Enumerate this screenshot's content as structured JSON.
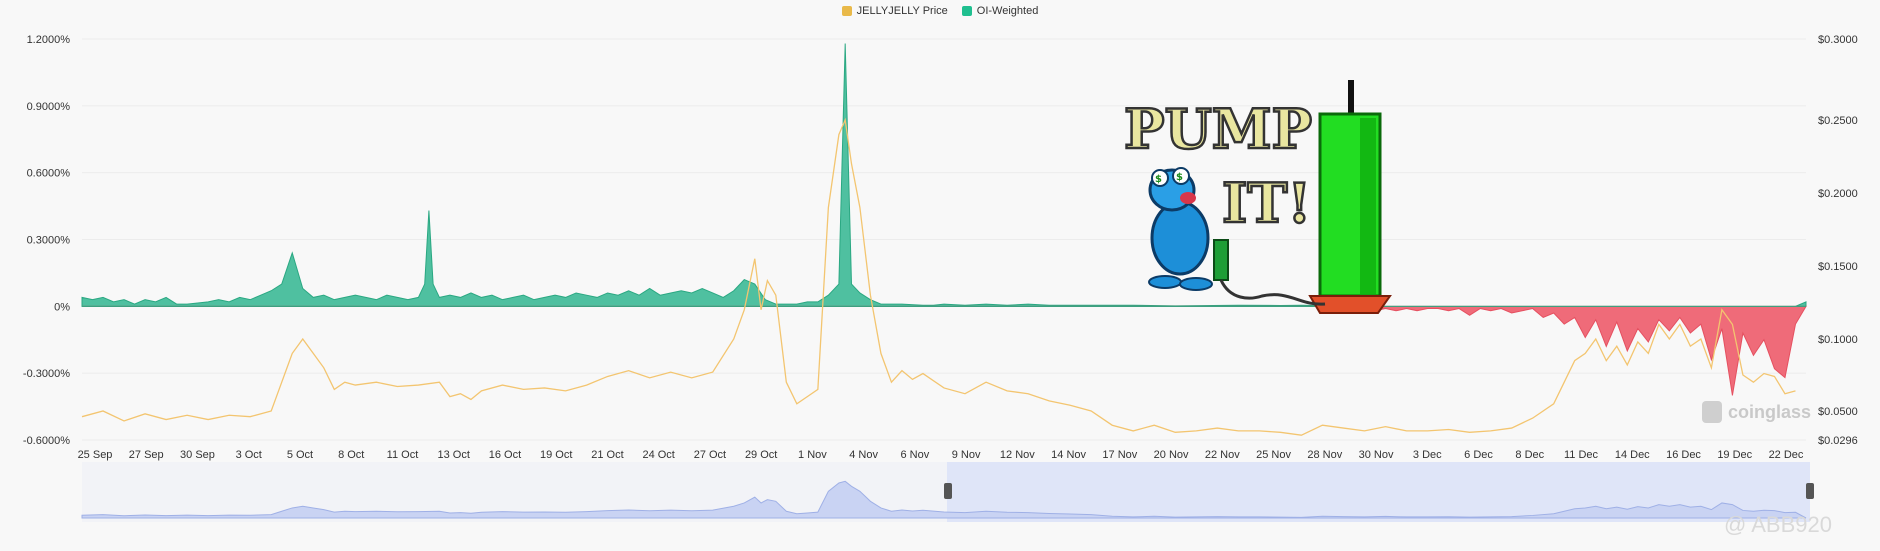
{
  "legend": {
    "price_label": "JELLYJELLY Price",
    "oi_label": "OI-Weighted",
    "price_color": "#e9b949",
    "oi_color": "#1fbf8f"
  },
  "colors": {
    "funding_positive": "#4fc0a0",
    "funding_negative": "#ef6b79",
    "price_line": "#f3c570",
    "navigator": "#c9d3f3"
  },
  "watermarks": {
    "coinglass": "coinglass",
    "author": "@ ABB920"
  },
  "sticker": {
    "line1": "PUMP",
    "line2": "IT!"
  },
  "chart_data": {
    "type": "area",
    "left_axis": {
      "ticks": [
        "1.2000%",
        "0.9000%",
        "0.6000%",
        "0.3000%",
        "0%",
        "-0.3000%",
        "-0.6000%"
      ],
      "values": [
        1.2,
        0.9,
        0.6,
        0.3,
        0,
        -0.3,
        -0.6
      ],
      "ylim": [
        -0.6,
        1.2
      ]
    },
    "right_axis": {
      "ticks": [
        "$0.3000",
        "$0.2500",
        "$0.2000",
        "$0.1500",
        "$0.1000",
        "$0.0500",
        "$0.0296"
      ],
      "values": [
        0.3,
        0.25,
        0.2,
        0.15,
        0.1,
        0.05,
        0.0296
      ],
      "ylim": [
        0.0296,
        0.3
      ]
    },
    "x_ticks": [
      "25 Sep",
      "27 Sep",
      "30 Sep",
      "3 Oct",
      "5 Oct",
      "8 Oct",
      "11 Oct",
      "13 Oct",
      "16 Oct",
      "19 Oct",
      "21 Oct",
      "24 Oct",
      "27 Oct",
      "29 Oct",
      "1 Nov",
      "4 Nov",
      "6 Nov",
      "9 Nov",
      "12 Nov",
      "14 Nov",
      "17 Nov",
      "20 Nov",
      "22 Nov",
      "25 Nov",
      "28 Nov",
      "30 Nov",
      "3 Dec",
      "6 Dec",
      "8 Dec",
      "11 Dec",
      "14 Dec",
      "16 Dec",
      "19 Dec",
      "22 Dec"
    ],
    "series": [
      {
        "name": "OI-Weighted",
        "axis": "left",
        "points": [
          [
            0,
            0.04
          ],
          [
            0.5,
            0.03
          ],
          [
            1,
            0.04
          ],
          [
            1.5,
            0.02
          ],
          [
            2,
            0.03
          ],
          [
            2.5,
            0.01
          ],
          [
            3,
            0.03
          ],
          [
            3.5,
            0.02
          ],
          [
            4,
            0.04
          ],
          [
            4.5,
            0.01
          ],
          [
            5,
            0.01
          ],
          [
            6,
            0.02
          ],
          [
            6.5,
            0.03
          ],
          [
            7,
            0.02
          ],
          [
            7.5,
            0.04
          ],
          [
            8,
            0.03
          ],
          [
            8.5,
            0.05
          ],
          [
            9,
            0.07
          ],
          [
            9.5,
            0.1
          ],
          [
            10,
            0.24
          ],
          [
            10.5,
            0.08
          ],
          [
            11,
            0.04
          ],
          [
            11.5,
            0.05
          ],
          [
            12,
            0.03
          ],
          [
            12.5,
            0.04
          ],
          [
            13,
            0.05
          ],
          [
            13.5,
            0.04
          ],
          [
            14,
            0.03
          ],
          [
            14.5,
            0.05
          ],
          [
            15,
            0.04
          ],
          [
            15.5,
            0.03
          ],
          [
            16,
            0.04
          ],
          [
            16.3,
            0.1
          ],
          [
            16.5,
            0.43
          ],
          [
            16.7,
            0.1
          ],
          [
            17,
            0.04
          ],
          [
            17.5,
            0.05
          ],
          [
            18,
            0.04
          ],
          [
            18.5,
            0.06
          ],
          [
            19,
            0.04
          ],
          [
            19.5,
            0.05
          ],
          [
            20,
            0.03
          ],
          [
            20.5,
            0.04
          ],
          [
            21,
            0.05
          ],
          [
            21.5,
            0.03
          ],
          [
            22,
            0.04
          ],
          [
            22.5,
            0.05
          ],
          [
            23,
            0.04
          ],
          [
            23.5,
            0.06
          ],
          [
            24,
            0.05
          ],
          [
            24.5,
            0.04
          ],
          [
            25,
            0.06
          ],
          [
            25.5,
            0.05
          ],
          [
            26,
            0.07
          ],
          [
            26.5,
            0.05
          ],
          [
            27,
            0.08
          ],
          [
            27.5,
            0.05
          ],
          [
            28,
            0.06
          ],
          [
            28.5,
            0.07
          ],
          [
            29,
            0.06
          ],
          [
            29.5,
            0.08
          ],
          [
            30,
            0.06
          ],
          [
            30.5,
            0.04
          ],
          [
            31,
            0.07
          ],
          [
            31.5,
            0.12
          ],
          [
            32,
            0.1
          ],
          [
            32.5,
            0.03
          ],
          [
            33,
            0.01
          ],
          [
            33.5,
            0.01
          ],
          [
            34,
            0.01
          ],
          [
            34.5,
            0.02
          ],
          [
            35,
            0.02
          ],
          [
            35.5,
            0.05
          ],
          [
            36,
            0.1
          ],
          [
            36.3,
            1.18
          ],
          [
            36.6,
            0.1
          ],
          [
            37,
            0.06
          ],
          [
            37.5,
            0.03
          ],
          [
            38,
            0.01
          ],
          [
            39,
            0.01
          ],
          [
            40,
            0.005
          ],
          [
            40.5,
            0.005
          ],
          [
            41,
            0.01
          ],
          [
            42,
            0.005
          ],
          [
            43,
            0.01
          ],
          [
            44,
            0.005
          ],
          [
            45,
            0.01
          ],
          [
            46,
            0.005
          ],
          [
            50,
            0.005
          ],
          [
            52,
            0.002
          ],
          [
            55,
            0.005
          ],
          [
            57,
            0.004
          ],
          [
            58,
            0.005
          ],
          [
            59,
            0.003
          ],
          [
            60,
            0.004
          ],
          [
            61,
            -0.01
          ],
          [
            61.5,
            -0.02
          ],
          [
            62,
            -0.01
          ],
          [
            62.5,
            -0.02
          ],
          [
            63,
            -0.01
          ],
          [
            63.5,
            -0.02
          ],
          [
            64,
            -0.01
          ],
          [
            64.5,
            -0.01
          ],
          [
            65,
            -0.02
          ],
          [
            65.5,
            -0.01
          ],
          [
            66,
            -0.04
          ],
          [
            66.5,
            -0.01
          ],
          [
            67,
            -0.02
          ],
          [
            67.5,
            -0.01
          ],
          [
            68,
            -0.03
          ],
          [
            68.5,
            -0.02
          ],
          [
            69,
            -0.01
          ],
          [
            69.5,
            -0.05
          ],
          [
            70,
            -0.03
          ],
          [
            70.5,
            -0.08
          ],
          [
            71,
            -0.05
          ],
          [
            71.5,
            -0.14
          ],
          [
            72,
            -0.06
          ],
          [
            72.5,
            -0.18
          ],
          [
            73,
            -0.07
          ],
          [
            73.5,
            -0.2
          ],
          [
            74,
            -0.1
          ],
          [
            74.5,
            -0.16
          ],
          [
            75,
            -0.06
          ],
          [
            75.5,
            -0.11
          ],
          [
            76,
            -0.05
          ],
          [
            76.5,
            -0.12
          ],
          [
            77,
            -0.08
          ],
          [
            77.5,
            -0.24
          ],
          [
            78,
            -0.1
          ],
          [
            78.5,
            -0.4
          ],
          [
            79,
            -0.12
          ],
          [
            79.5,
            -0.22
          ],
          [
            80,
            -0.15
          ],
          [
            80.5,
            -0.28
          ],
          [
            81,
            -0.32
          ],
          [
            81.5,
            -0.08
          ],
          [
            82,
            0.02
          ]
        ]
      },
      {
        "name": "JELLYJELLY Price",
        "axis": "right",
        "points": [
          [
            0,
            0.046
          ],
          [
            1,
            0.05
          ],
          [
            2,
            0.043
          ],
          [
            3,
            0.048
          ],
          [
            4,
            0.044
          ],
          [
            5,
            0.047
          ],
          [
            6,
            0.044
          ],
          [
            7,
            0.047
          ],
          [
            8,
            0.046
          ],
          [
            9,
            0.05
          ],
          [
            9.5,
            0.07
          ],
          [
            10,
            0.09
          ],
          [
            10.5,
            0.1
          ],
          [
            11,
            0.09
          ],
          [
            11.5,
            0.08
          ],
          [
            12,
            0.065
          ],
          [
            12.5,
            0.07
          ],
          [
            13,
            0.068
          ],
          [
            14,
            0.07
          ],
          [
            15,
            0.067
          ],
          [
            16,
            0.068
          ],
          [
            17,
            0.07
          ],
          [
            17.5,
            0.06
          ],
          [
            18,
            0.062
          ],
          [
            18.5,
            0.058
          ],
          [
            19,
            0.064
          ],
          [
            20,
            0.068
          ],
          [
            21,
            0.065
          ],
          [
            22,
            0.066
          ],
          [
            23,
            0.064
          ],
          [
            24,
            0.068
          ],
          [
            25,
            0.074
          ],
          [
            26,
            0.078
          ],
          [
            27,
            0.073
          ],
          [
            28,
            0.077
          ],
          [
            29,
            0.073
          ],
          [
            30,
            0.077
          ],
          [
            31,
            0.1
          ],
          [
            31.5,
            0.12
          ],
          [
            32,
            0.155
          ],
          [
            32.3,
            0.12
          ],
          [
            32.6,
            0.14
          ],
          [
            33,
            0.13
          ],
          [
            33.5,
            0.07
          ],
          [
            34,
            0.055
          ],
          [
            34.5,
            0.06
          ],
          [
            35,
            0.065
          ],
          [
            35.5,
            0.19
          ],
          [
            36,
            0.24
          ],
          [
            36.3,
            0.25
          ],
          [
            36.6,
            0.22
          ],
          [
            37,
            0.19
          ],
          [
            37.5,
            0.13
          ],
          [
            38,
            0.09
          ],
          [
            38.5,
            0.07
          ],
          [
            39,
            0.078
          ],
          [
            39.5,
            0.072
          ],
          [
            40,
            0.076
          ],
          [
            41,
            0.066
          ],
          [
            42,
            0.062
          ],
          [
            43,
            0.07
          ],
          [
            44,
            0.064
          ],
          [
            45,
            0.062
          ],
          [
            46,
            0.057
          ],
          [
            47,
            0.054
          ],
          [
            48,
            0.05
          ],
          [
            49,
            0.04
          ],
          [
            50,
            0.036
          ],
          [
            51,
            0.04
          ],
          [
            52,
            0.035
          ],
          [
            53,
            0.036
          ],
          [
            54,
            0.038
          ],
          [
            55,
            0.036
          ],
          [
            56,
            0.036
          ],
          [
            57,
            0.035
          ],
          [
            58,
            0.033
          ],
          [
            59,
            0.04
          ],
          [
            60,
            0.038
          ],
          [
            61,
            0.036
          ],
          [
            62,
            0.039
          ],
          [
            63,
            0.036
          ],
          [
            64,
            0.036
          ],
          [
            65,
            0.037
          ],
          [
            66,
            0.035
          ],
          [
            67,
            0.036
          ],
          [
            68,
            0.038
          ],
          [
            69,
            0.045
          ],
          [
            70,
            0.055
          ],
          [
            70.5,
            0.07
          ],
          [
            71,
            0.085
          ],
          [
            71.5,
            0.09
          ],
          [
            72,
            0.1
          ],
          [
            72.5,
            0.085
          ],
          [
            73,
            0.095
          ],
          [
            73.5,
            0.082
          ],
          [
            74,
            0.098
          ],
          [
            74.5,
            0.09
          ],
          [
            75,
            0.11
          ],
          [
            75.5,
            0.1
          ],
          [
            76,
            0.11
          ],
          [
            76.5,
            0.095
          ],
          [
            77,
            0.1
          ],
          [
            77.5,
            0.08
          ],
          [
            78,
            0.12
          ],
          [
            78.5,
            0.11
          ],
          [
            79,
            0.075
          ],
          [
            79.5,
            0.07
          ],
          [
            80,
            0.076
          ],
          [
            80.5,
            0.074
          ],
          [
            81,
            0.062
          ],
          [
            81.5,
            0.064
          ]
        ]
      }
    ],
    "navigator": {
      "selected_range": [
        "9 Nov",
        "22 Dec"
      ]
    },
    "grid": "horizontal",
    "legend_position": "top-center"
  }
}
